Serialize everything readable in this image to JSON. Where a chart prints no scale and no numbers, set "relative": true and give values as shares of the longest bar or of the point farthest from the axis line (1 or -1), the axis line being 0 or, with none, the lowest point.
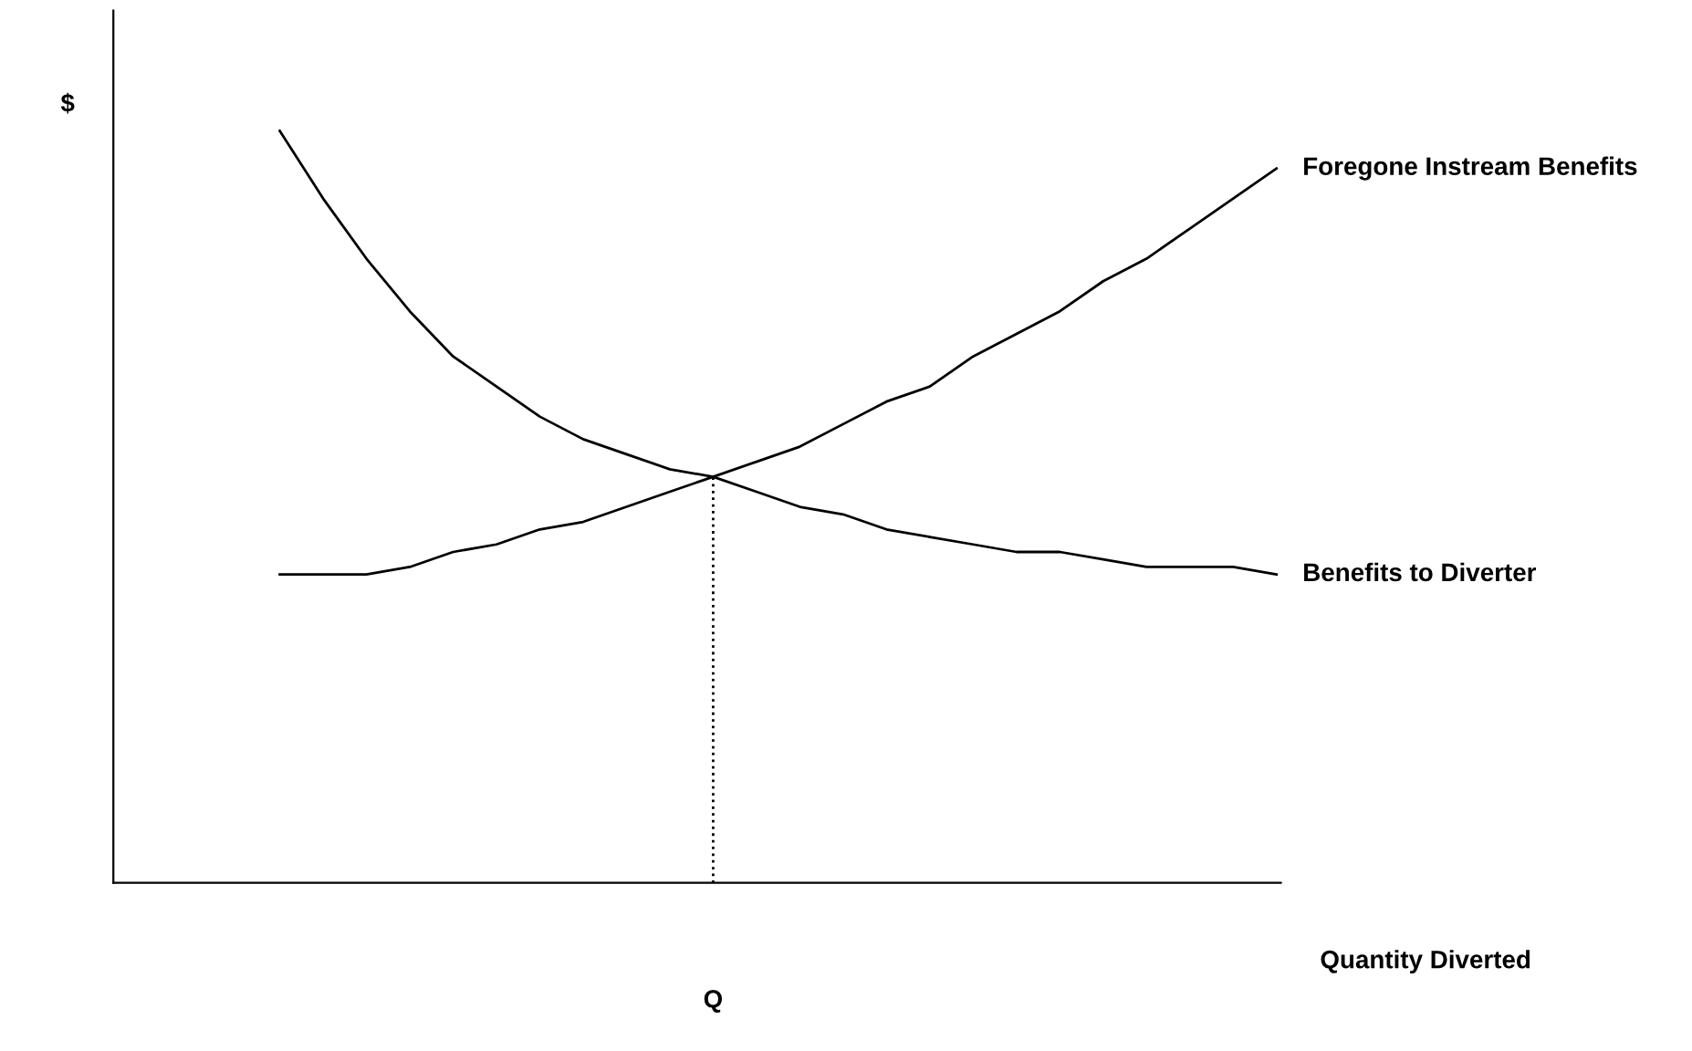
{
  "chart_data": {
    "type": "line",
    "relative": true,
    "annotations": [
      "Quantity Diverted",
      "$"
    ],
    "legend": false,
    "marker": "none",
    "categories": [
      null,
      null,
      null,
      null,
      null,
      null,
      null,
      null,
      null,
      null,
      null,
      null,
      null,
      null,
      null,
      null,
      null,
      null,
      null,
      null,
      null,
      null,
      null,
      null
    ],
    "series": [
      {
        "name": "Benefits to Diverter",
        "color": "#000000",
        "line_style": "solid",
        "values": [
          1.0,
          0.91,
          0.83,
          0.76,
          0.7,
          0.66,
          0.62,
          0.59,
          0.57,
          0.55,
          0.54,
          0.52,
          0.5,
          0.49,
          0.47,
          0.46,
          0.45,
          0.44,
          0.44,
          0.43,
          0.42,
          0.42,
          0.42,
          0.41
        ]
      },
      {
        "name": "Foregone Instream Benefits",
        "color": "#000000",
        "line_style": "solid",
        "values": [
          0.41,
          0.41,
          0.41,
          0.42,
          0.44,
          0.45,
          0.47,
          0.48,
          0.5,
          0.52,
          0.54,
          0.56,
          0.58,
          0.61,
          0.64,
          0.66,
          0.7,
          0.73,
          0.76,
          0.8,
          0.83,
          0.87,
          0.91,
          0.95
        ]
      }
    ],
    "ref_lines": [
      {
        "axis": "x",
        "label": "Q",
        "color": "#000000",
        "line_style": "dotted"
      }
    ]
  }
}
